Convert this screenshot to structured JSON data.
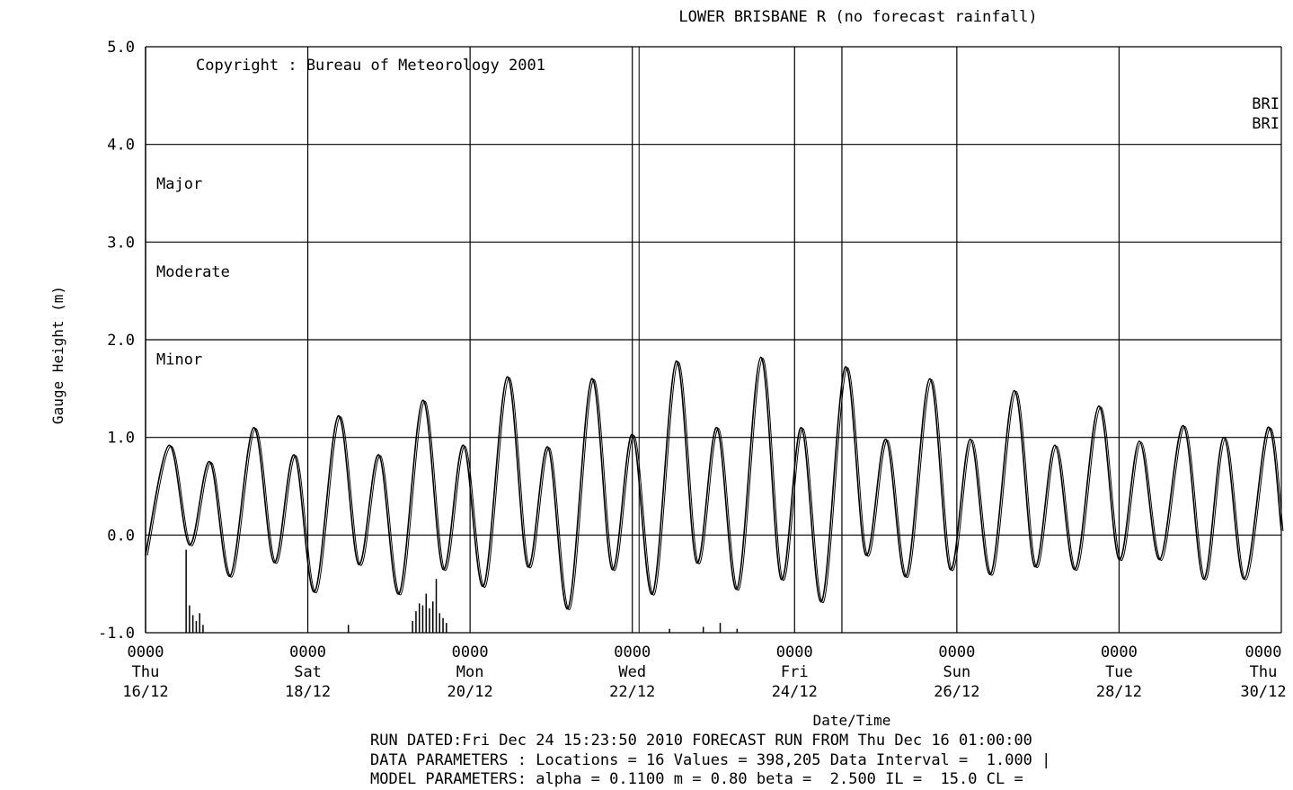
{
  "chart_data": {
    "type": "line",
    "title": "LOWER BRISBANE R (no forecast rainfall)",
    "copyright": "Copyright : Bureau of Meteorology 2001",
    "ylabel": "Gauge Height (m)",
    "xlabel": "Date/Time",
    "ylim": [
      -1.0,
      5.0
    ],
    "y_ticks": [
      "5.0",
      "4.0",
      "3.0",
      "2.0",
      "1.0",
      "0.0",
      "-1.0"
    ],
    "x_range_hours": [
      0,
      336
    ],
    "x_ticks": [
      {
        "hour": 0,
        "time": "0000",
        "day": "Thu",
        "date": "16/12"
      },
      {
        "hour": 48,
        "time": "0000",
        "day": "Sat",
        "date": "18/12"
      },
      {
        "hour": 96,
        "time": "0000",
        "day": "Mon",
        "date": "20/12"
      },
      {
        "hour": 144,
        "time": "0000",
        "day": "Wed",
        "date": "22/12"
      },
      {
        "hour": 192,
        "time": "0000",
        "day": "Fri",
        "date": "24/12"
      },
      {
        "hour": 240,
        "time": "0000",
        "day": "Sun",
        "date": "26/12"
      },
      {
        "hour": 288,
        "time": "0000",
        "day": "Tue",
        "date": "28/12"
      },
      {
        "hour": 336,
        "time": "0000",
        "day": "Thu",
        "date": "30/12"
      }
    ],
    "flood_levels": [
      {
        "label": "Major",
        "value": 3.6
      },
      {
        "label": "Moderate",
        "value": 2.7
      },
      {
        "label": "Minor",
        "value": 1.8
      }
    ],
    "station_labels": [
      "BRI",
      "BRI"
    ],
    "forecast_start_hour": 206,
    "grid": true,
    "series": [
      {
        "hours": [
          0,
          7,
          13,
          19,
          25,
          32,
          38,
          44,
          50,
          57,
          63,
          69,
          75,
          82,
          88,
          94,
          100,
          107,
          113,
          119,
          125,
          132,
          138,
          144,
          150,
          157,
          163,
          169,
          175,
          182,
          188,
          194,
          200,
          207,
          213,
          219,
          225,
          232,
          238,
          244,
          250,
          257,
          263,
          269,
          275,
          282,
          288,
          294,
          300,
          307,
          313,
          319,
          325,
          332,
          336
        ],
        "values": [
          -0.2,
          0.92,
          -0.1,
          0.75,
          -0.42,
          1.1,
          -0.28,
          0.82,
          -0.58,
          1.22,
          -0.3,
          0.82,
          -0.6,
          1.38,
          -0.35,
          0.92,
          -0.52,
          1.62,
          -0.32,
          0.9,
          -0.75,
          1.6,
          -0.35,
          1.03,
          -0.6,
          1.78,
          -0.28,
          1.1,
          -0.55,
          1.82,
          -0.45,
          1.1,
          -0.68,
          1.72,
          -0.2,
          0.98,
          -0.42,
          1.6,
          -0.35,
          0.98,
          -0.4,
          1.48,
          -0.32,
          0.92,
          -0.35,
          1.32,
          -0.25,
          0.96,
          -0.25,
          1.12,
          -0.45,
          1.0,
          -0.45,
          1.1,
          0.05
        ]
      }
    ],
    "rainfall_bars": [
      {
        "hour": 12,
        "value": 0.85
      },
      {
        "hour": 13,
        "value": 0.28
      },
      {
        "hour": 14,
        "value": 0.18
      },
      {
        "hour": 15,
        "value": 0.12
      },
      {
        "hour": 16,
        "value": 0.2
      },
      {
        "hour": 17,
        "value": 0.08
      },
      {
        "hour": 60,
        "value": 0.08
      },
      {
        "hour": 79,
        "value": 0.12
      },
      {
        "hour": 80,
        "value": 0.22
      },
      {
        "hour": 81,
        "value": 0.3
      },
      {
        "hour": 82,
        "value": 0.28
      },
      {
        "hour": 83,
        "value": 0.4
      },
      {
        "hour": 84,
        "value": 0.25
      },
      {
        "hour": 85,
        "value": 0.32
      },
      {
        "hour": 86,
        "value": 0.55
      },
      {
        "hour": 87,
        "value": 0.2
      },
      {
        "hour": 88,
        "value": 0.15
      },
      {
        "hour": 89,
        "value": 0.1
      },
      {
        "hour": 155,
        "value": 0.04
      },
      {
        "hour": 165,
        "value": 0.06
      },
      {
        "hour": 170,
        "value": 0.1
      },
      {
        "hour": 175,
        "value": 0.04
      }
    ]
  },
  "footer": {
    "line1": "RUN DATED:Fri Dec 24 15:23:50 2010 FORECAST RUN FROM Thu Dec 16 01:00:00",
    "line2": "DATA PARAMETERS : Locations = 16 Values = 398,205 Data Interval =  1.000 |",
    "line3": "MODEL PARAMETERS: alpha = 0.1100 m = 0.80 beta =  2.500 IL =  15.0 CL ="
  }
}
